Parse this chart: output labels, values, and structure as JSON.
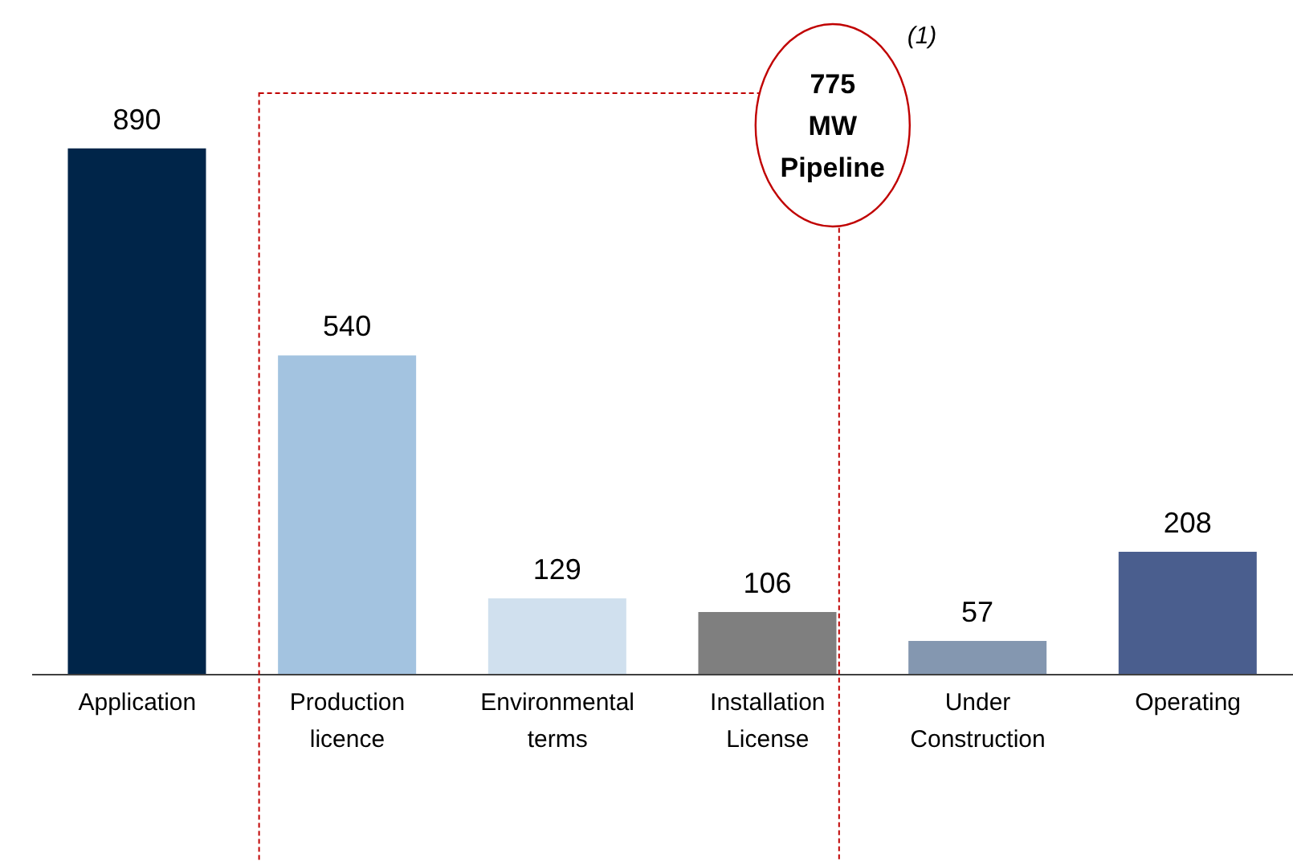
{
  "chart_data": {
    "type": "bar",
    "categories": [
      "Application",
      "Production licence",
      "Environmental terms",
      "Installation License",
      "Under Construction",
      "Operating"
    ],
    "values": [
      890,
      540,
      129,
      106,
      57,
      208
    ],
    "colors": [
      "#002549",
      "#a3c3e0",
      "#d0e0ee",
      "#7f7f7f",
      "#8497b0",
      "#4a5e8e"
    ],
    "data_labels": true,
    "annotations": [
      "775 MW Pipeline",
      "(1)"
    ]
  }
}
